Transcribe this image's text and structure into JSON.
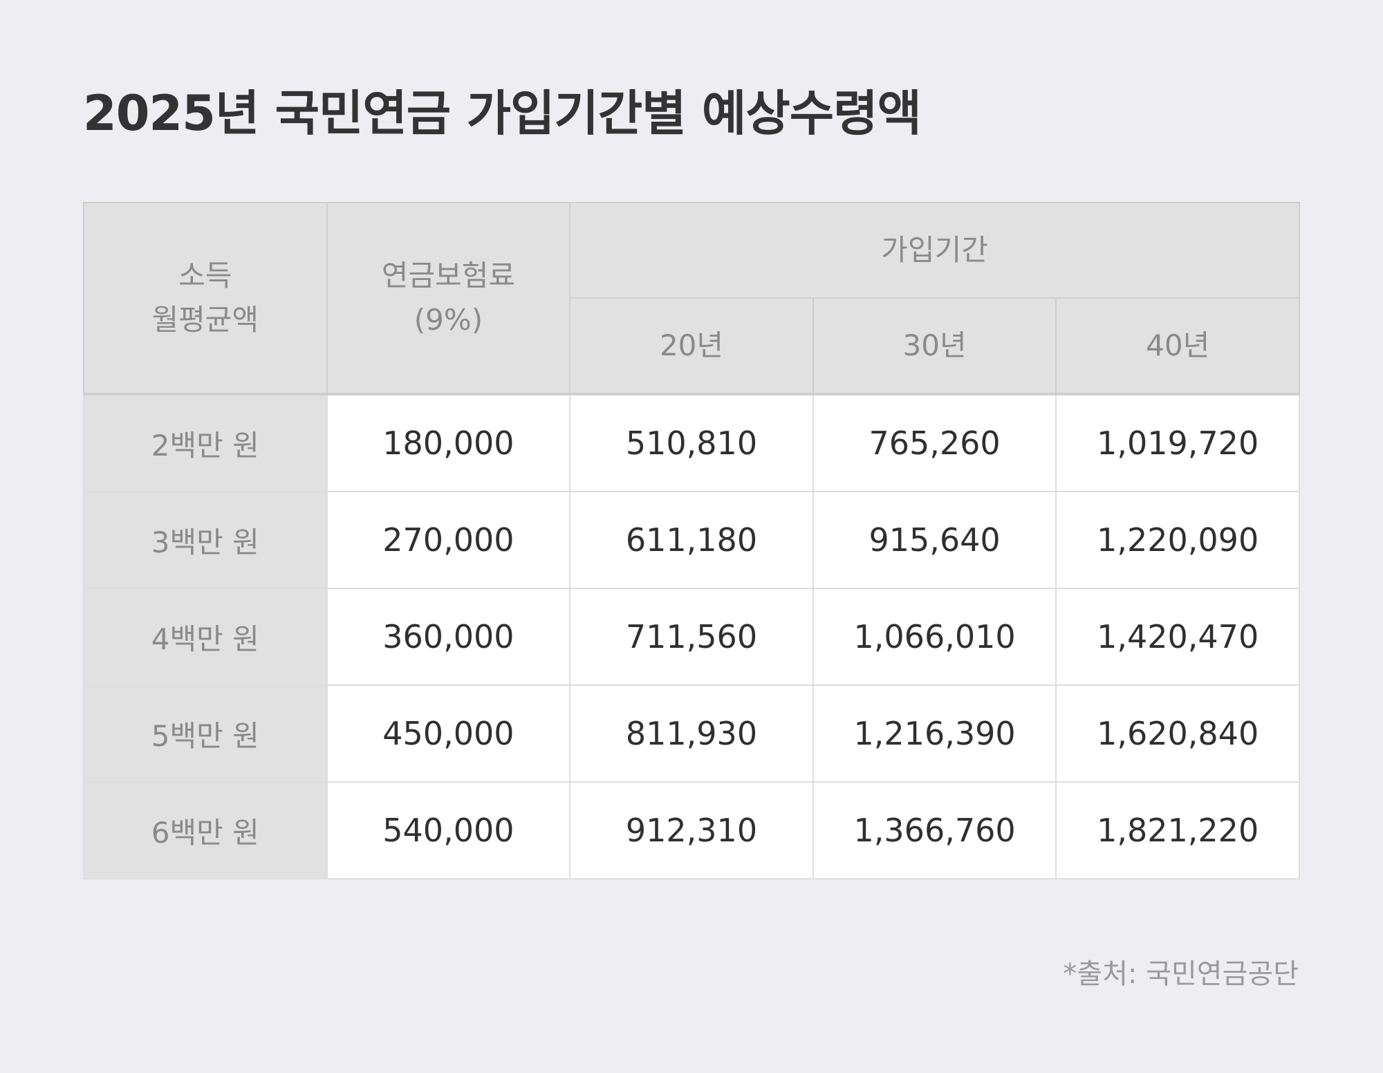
{
  "title": "2025년 국민연금 가입기간별 예상수령액",
  "table": {
    "headers": {
      "income_line1": "소득",
      "income_line2": "월평균액",
      "premium_line1": "연금보험료",
      "premium_line2": "(9%)",
      "period_group": "가입기간",
      "periods": [
        "20년",
        "30년",
        "40년"
      ]
    },
    "rows": [
      {
        "income": "2백만 원",
        "premium": "180,000",
        "y20": "510,810",
        "y30": "765,260",
        "y40": "1,019,720"
      },
      {
        "income": "3백만 원",
        "premium": "270,000",
        "y20": "611,180",
        "y30": "915,640",
        "y40": "1,220,090"
      },
      {
        "income": "4백만 원",
        "premium": "360,000",
        "y20": "711,560",
        "y30": "1,066,010",
        "y40": "1,420,470"
      },
      {
        "income": "5백만 원",
        "premium": "450,000",
        "y20": "811,930",
        "y30": "1,216,390",
        "y40": "1,620,840"
      },
      {
        "income": "6백만 원",
        "premium": "540,000",
        "y20": "912,310",
        "y30": "1,366,760",
        "y40": "1,821,220"
      }
    ]
  },
  "source": "*출처: 국민연금공단"
}
